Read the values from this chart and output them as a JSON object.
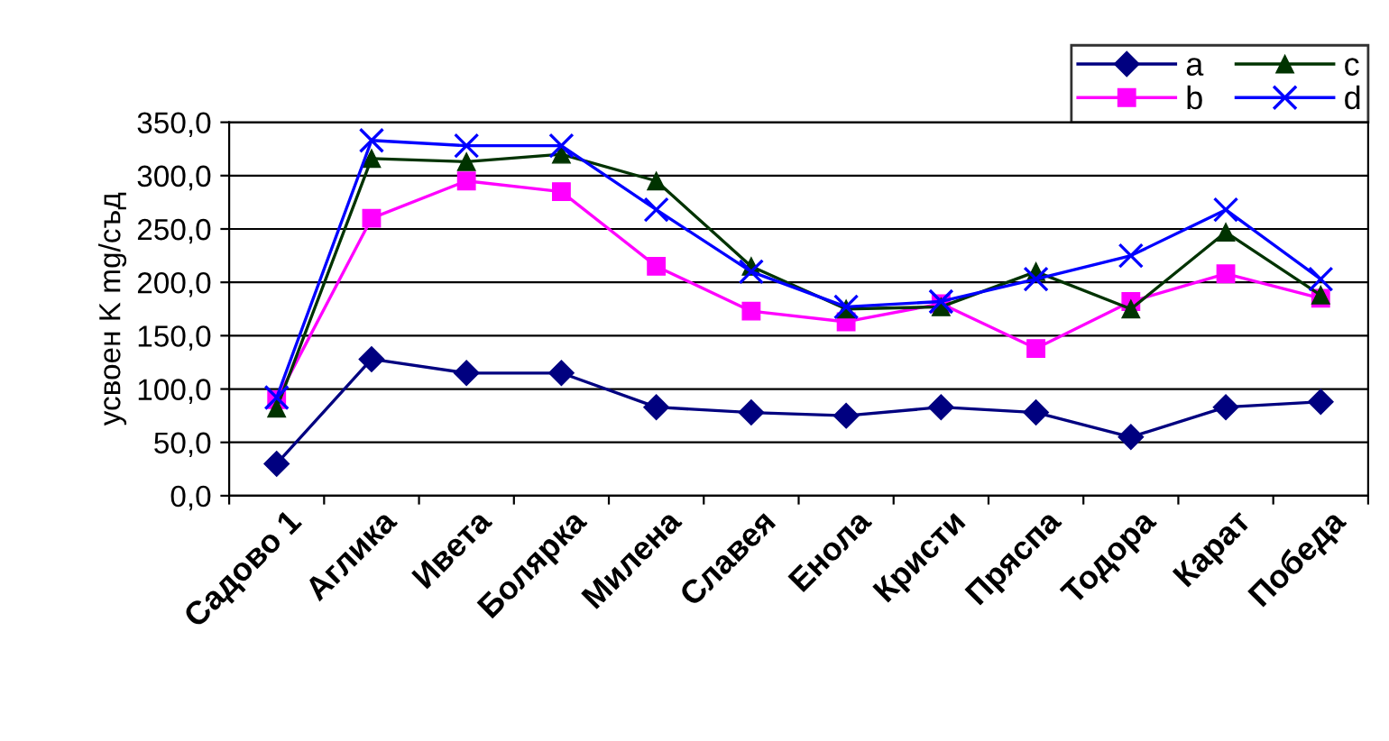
{
  "chart_data": {
    "type": "line",
    "ylabel": "усвоен K mg/съд",
    "categories": [
      "Садово 1",
      "Аглика",
      "Ивета",
      "Болярка",
      "Милена",
      "Славея",
      "Енола",
      "Кристи",
      "Пряспа",
      "Тодора",
      "Карат",
      "Победа"
    ],
    "series": [
      {
        "name": "a",
        "color": "#000080",
        "marker": "diamond",
        "values": [
          30,
          128,
          115,
          115,
          83,
          78,
          75,
          83,
          78,
          55,
          83,
          88
        ]
      },
      {
        "name": "b",
        "color": "#ff00ff",
        "marker": "square",
        "values": [
          90,
          260,
          295,
          285,
          215,
          173,
          163,
          180,
          138,
          182,
          208,
          185
        ]
      },
      {
        "name": "c",
        "color": "#003300",
        "marker": "triangle",
        "values": [
          82,
          316,
          313,
          320,
          295,
          215,
          175,
          177,
          210,
          175,
          247,
          188
        ]
      },
      {
        "name": "d",
        "color": "#0000ff",
        "marker": "cross",
        "values": [
          92,
          333,
          328,
          328,
          268,
          210,
          177,
          182,
          203,
          225,
          268,
          203
        ]
      }
    ],
    "ylim": [
      0,
      350
    ],
    "yticks": [
      {
        "value": 0,
        "label": "0,0"
      },
      {
        "value": 50,
        "label": "50,0"
      },
      {
        "value": 100,
        "label": "100,0"
      },
      {
        "value": 150,
        "label": "150,0"
      },
      {
        "value": 200,
        "label": "200,0"
      },
      {
        "value": 250,
        "label": "250,0"
      },
      {
        "value": 300,
        "label": "300,0"
      },
      {
        "value": 350,
        "label": "350,0"
      }
    ],
    "grid": "y",
    "legend": "top right",
    "line_style": "solid"
  }
}
